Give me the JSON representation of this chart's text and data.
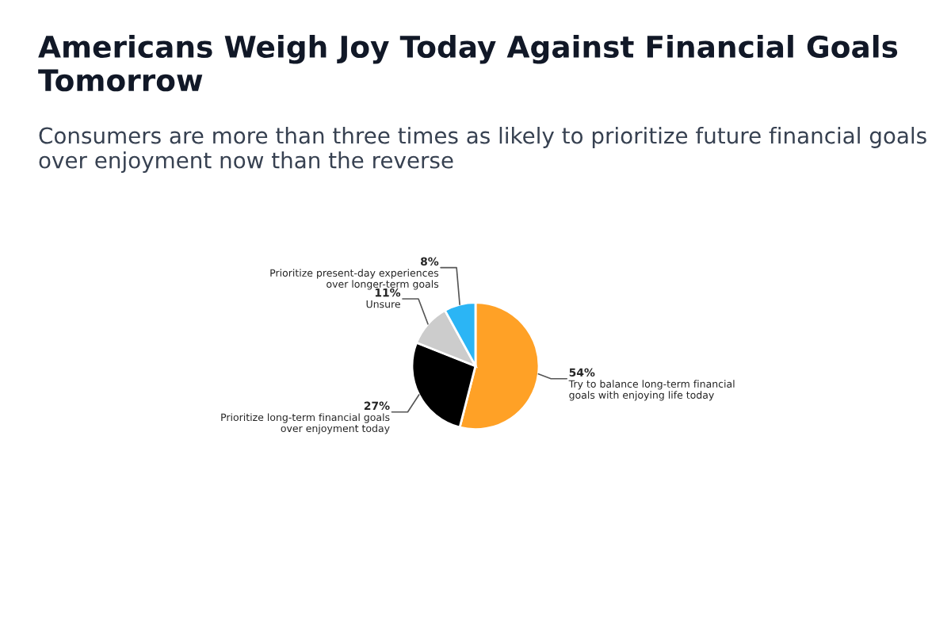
{
  "chart_data": {
    "type": "pie",
    "title": "Americans Weigh Joy Today Against Financial Goals Tomorrow",
    "subtitle": "Consumers are more than three times as likely to prioritize future financial goals over enjoyment now than the reverse",
    "categories": [
      "Try to balance long-term financial goals with enjoying life today",
      "Prioritize long-term financial goals over enjoyment today",
      "Unsure",
      "Prioritize present-day experiences over longer-term goals"
    ],
    "values": [
      54,
      27,
      11,
      8
    ],
    "value_labels": [
      "54%",
      "27%",
      "11%",
      "8%"
    ],
    "colors": [
      "#ffa126",
      "#000000",
      "#cccccc",
      "#2bb5f5"
    ],
    "legend": false
  }
}
